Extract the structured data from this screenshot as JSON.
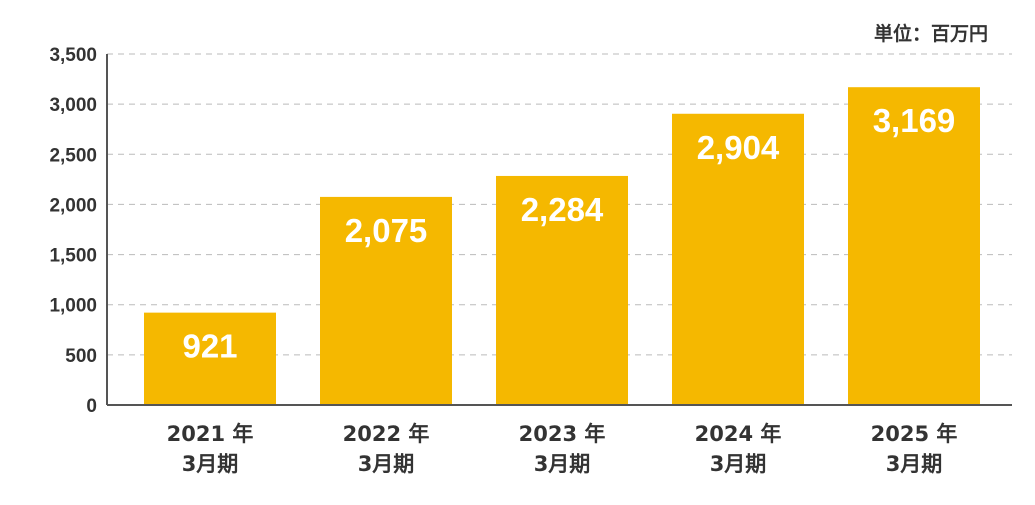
{
  "chart_data": {
    "type": "bar",
    "unit_label": "単位：百万円",
    "categories": [
      [
        "2021 年",
        "3月期"
      ],
      [
        "2022 年",
        "3月期"
      ],
      [
        "2023 年",
        "3月期"
      ],
      [
        "2024 年",
        "3月期"
      ],
      [
        "2025 年",
        "3月期"
      ]
    ],
    "values": [
      921,
      2075,
      2284,
      2904,
      3169
    ],
    "value_labels": [
      "921",
      "2,075",
      "2,284",
      "2,904",
      "3,169"
    ],
    "y_ticks": [
      0,
      500,
      1000,
      1500,
      2000,
      2500,
      3000,
      3500
    ],
    "y_tick_labels": [
      "0",
      "500",
      "1,000",
      "1,500",
      "2,000",
      "2,500",
      "3,000",
      "3,500"
    ],
    "ylim": [
      0,
      3500
    ],
    "grid": true,
    "bar_color": "#F5B800",
    "grid_color": "#BBBBBB",
    "axis_color": "#555555",
    "text_color": "#333333"
  }
}
